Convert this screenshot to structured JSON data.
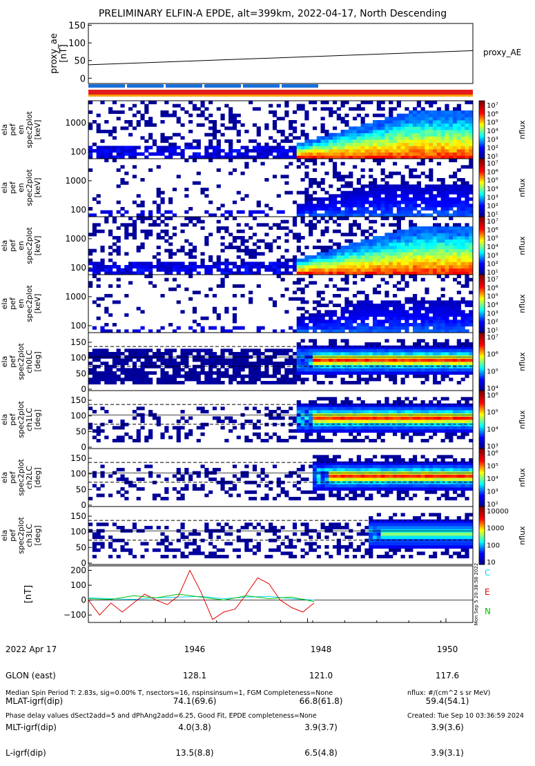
{
  "chart_data": {
    "type": "heatmap",
    "title": "PRELIMINARY ELFIN-A EPDE, alt=399km, 2022-04-17, North Descending",
    "proxy_ae": {
      "ylabel": [
        "proxy_ae",
        "[nT]"
      ],
      "yticks": [
        "150",
        "100",
        "50",
        "0"
      ],
      "ylim": [
        -15,
        155
      ],
      "series_label": "proxy_AE",
      "line": {
        "start": 38,
        "end": 78
      }
    },
    "spectrogram_panels": [
      {
        "ylabel": [
          "ela",
          "pef",
          "en",
          "spec2plot",
          "[keV]"
        ],
        "yticks": [
          "1000",
          "100"
        ],
        "colorbar_label": "nflux",
        "colorbar_ticks": [
          "10⁷",
          "10⁶",
          "10⁵",
          "10⁴",
          "10³",
          "10²",
          "10¹"
        ]
      },
      {
        "ylabel": [
          "ela",
          "pef",
          "en",
          "spec2plot",
          "[keV]"
        ],
        "yticks": [
          "1000",
          "100"
        ],
        "colorbar_label": "nflux",
        "colorbar_ticks": [
          "10⁷",
          "10⁶",
          "10⁵",
          "10⁴",
          "10³",
          "10²",
          "10¹"
        ]
      },
      {
        "ylabel": [
          "ela",
          "pef",
          "en",
          "spec2plot",
          "[keV]"
        ],
        "yticks": [
          "1000",
          "100"
        ],
        "colorbar_label": "nflux",
        "colorbar_ticks": [
          "10⁷",
          "10⁶",
          "10⁵",
          "10⁴",
          "10³",
          "10²",
          "10¹"
        ]
      },
      {
        "ylabel": [
          "ela",
          "pef",
          "en",
          "spec2plot",
          "[keV]"
        ],
        "yticks": [
          "1000",
          "100"
        ],
        "colorbar_label": "nflux",
        "colorbar_ticks": [
          "10⁷",
          "10⁶",
          "10⁵",
          "10⁴",
          "10³",
          "10²",
          "10¹"
        ]
      },
      {
        "ylabel": [
          "ela",
          "pef",
          "spec2plot",
          "ch0LC",
          "[deg]"
        ],
        "yticks": [
          "150",
          "100",
          "50",
          "0"
        ],
        "colorbar_label": "nflux",
        "colorbar_ticks": [
          "10⁷",
          "10⁶",
          "10⁵",
          "10⁴"
        ]
      },
      {
        "ylabel": [
          "ela",
          "pef",
          "spec2plot",
          "ch1LC",
          "[deg]"
        ],
        "yticks": [
          "150",
          "100",
          "50",
          "0"
        ],
        "colorbar_label": "nflux",
        "colorbar_ticks": [
          "10⁶",
          "10⁵",
          "10⁴",
          "10³"
        ]
      },
      {
        "ylabel": [
          "ela",
          "pef",
          "spec2plot",
          "ch2LC",
          "[deg]"
        ],
        "yticks": [
          "150",
          "100",
          "50",
          "0"
        ],
        "colorbar_label": "nflux",
        "colorbar_ticks": [
          "10⁶",
          "10⁵",
          "10⁴",
          "10³",
          "10²"
        ]
      },
      {
        "ylabel": [
          "ela",
          "pef",
          "spec2plot",
          "ch3LC",
          "[deg]"
        ],
        "yticks": [
          "150",
          "100",
          "50",
          "0"
        ],
        "colorbar_label": "nflux",
        "colorbar_ticks": [
          "10000",
          "1000",
          "100",
          "10"
        ]
      }
    ],
    "field_panel": {
      "ylabel": "[nT]",
      "yticks": [
        "200",
        "100",
        "0",
        "−100"
      ],
      "ylim": [
        -150,
        230
      ],
      "side_text": "Mon Sep 5 20:38:58 2022",
      "series": [
        {
          "name": "C",
          "color": "#00d7ff",
          "x": [
            0,
            0.1,
            0.2,
            0.3,
            0.4,
            0.5,
            0.6,
            0.7,
            0.8,
            0.9,
            1.0
          ],
          "values": [
            15,
            10,
            5,
            15,
            20,
            25,
            10,
            20,
            25,
            10,
            0
          ]
        },
        {
          "name": "E",
          "color": "#e00000",
          "x": [
            0,
            0.05,
            0.1,
            0.15,
            0.2,
            0.25,
            0.3,
            0.35,
            0.4,
            0.45,
            0.5,
            0.55,
            0.6,
            0.65,
            0.7,
            0.75,
            0.8,
            0.85,
            0.9,
            0.95,
            1.0
          ],
          "values": [
            0,
            -100,
            -20,
            -80,
            -20,
            40,
            0,
            -30,
            30,
            200,
            50,
            -130,
            -80,
            -60,
            40,
            150,
            110,
            0,
            -50,
            -80,
            -20
          ]
        },
        {
          "name": "N",
          "color": "#00c000",
          "x": [
            0,
            0.1,
            0.2,
            0.3,
            0.4,
            0.5,
            0.6,
            0.7,
            0.8,
            0.9,
            1.0
          ],
          "values": [
            10,
            5,
            30,
            15,
            40,
            20,
            0,
            30,
            10,
            20,
            -10
          ]
        }
      ]
    },
    "x_info": {
      "row_labels": [
        "2022 Apr 17",
        "GLON (east)",
        "MLAT-igrf(dip)",
        "MLT-igrf(dip)",
        "L-igrf(dip)"
      ],
      "columns": [
        {
          "values": [
            "1946",
            "128.1",
            "74.1(69.6)",
            "4.0(3.8)",
            "13.5(8.8)"
          ]
        },
        {
          "values": [
            "1948",
            "121.0",
            "66.8(61.8)",
            "3.9(3.7)",
            "6.5(4.8)"
          ]
        },
        {
          "values": [
            "1950",
            "117.6",
            "59.4(54.1)",
            "3.9(3.6)",
            "3.9(3.1)"
          ]
        }
      ]
    },
    "footer": {
      "left": [
        "Median Spin Period T: 2.83s, sig=0.00% T, nsectors=16, nspinsinsum=1, FGM Completeness=None",
        "Phase delay values dSect2add=5 and dPhAng2add=6.25, Good Fit, EPDE completeness=None"
      ],
      "right": [
        "nflux: #/(cm^2 s sr MeV)",
        "Created: Tue Sep 10 03:36:59 2024"
      ]
    }
  }
}
